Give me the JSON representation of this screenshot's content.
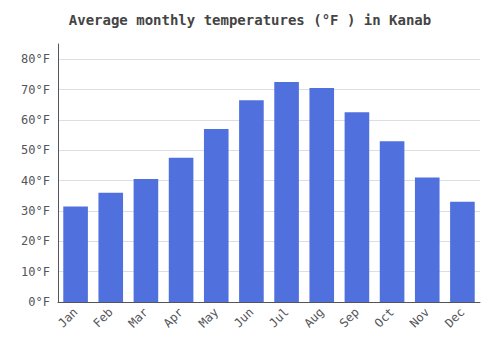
{
  "chart_data": {
    "type": "bar",
    "title": "Average monthly temperatures (°F ) in Kanab",
    "categories": [
      "Jan",
      "Feb",
      "Mar",
      "Apr",
      "May",
      "Jun",
      "Jul",
      "Aug",
      "Sep",
      "Oct",
      "Nov",
      "Dec"
    ],
    "values": [
      31.5,
      36.0,
      40.5,
      47.5,
      57.0,
      66.5,
      72.5,
      70.5,
      62.5,
      53.0,
      41.0,
      33.0
    ],
    "ylim": [
      0,
      85
    ],
    "yticks": [
      {
        "value": 0,
        "label": "0°F"
      },
      {
        "value": 10,
        "label": "10°F"
      },
      {
        "value": 20,
        "label": "20°F"
      },
      {
        "value": 30,
        "label": "30°F"
      },
      {
        "value": 40,
        "label": "40°F"
      },
      {
        "value": 50,
        "label": "50°F"
      },
      {
        "value": 60,
        "label": "60°F"
      },
      {
        "value": 70,
        "label": "70°F"
      },
      {
        "value": 80,
        "label": "80°F"
      }
    ],
    "grid": true
  }
}
